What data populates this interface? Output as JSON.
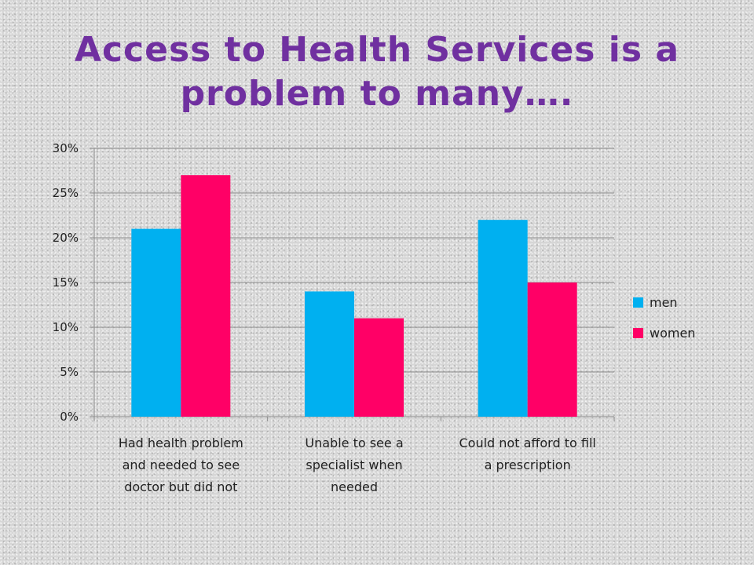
{
  "slide": {
    "title": "Access to Health Services is a problem to many…."
  },
  "colors": {
    "title": "#7030a0",
    "men": "#00b0f0",
    "women": "#ff0066",
    "gridline": "#8c8c8c"
  },
  "chart_data": {
    "type": "bar",
    "title": "",
    "xlabel": "",
    "ylabel": "",
    "ylim": [
      0,
      0.3
    ],
    "y_ticks": [
      0,
      0.05,
      0.1,
      0.15,
      0.2,
      0.25,
      0.3
    ],
    "y_tick_labels": [
      "0%",
      "5%",
      "10%",
      "15%",
      "20%",
      "25%",
      "30%"
    ],
    "grid": true,
    "legend_position": "right",
    "categories": [
      [
        "Had health problem",
        "and needed to see",
        "doctor but did not"
      ],
      [
        "Unable to see a",
        "specialist when",
        "needed"
      ],
      [
        "Could not afford to fill",
        "a prescription"
      ]
    ],
    "series": [
      {
        "name": "men",
        "values": [
          0.21,
          0.14,
          0.22
        ]
      },
      {
        "name": "women",
        "values": [
          0.27,
          0.11,
          0.15
        ]
      }
    ]
  }
}
